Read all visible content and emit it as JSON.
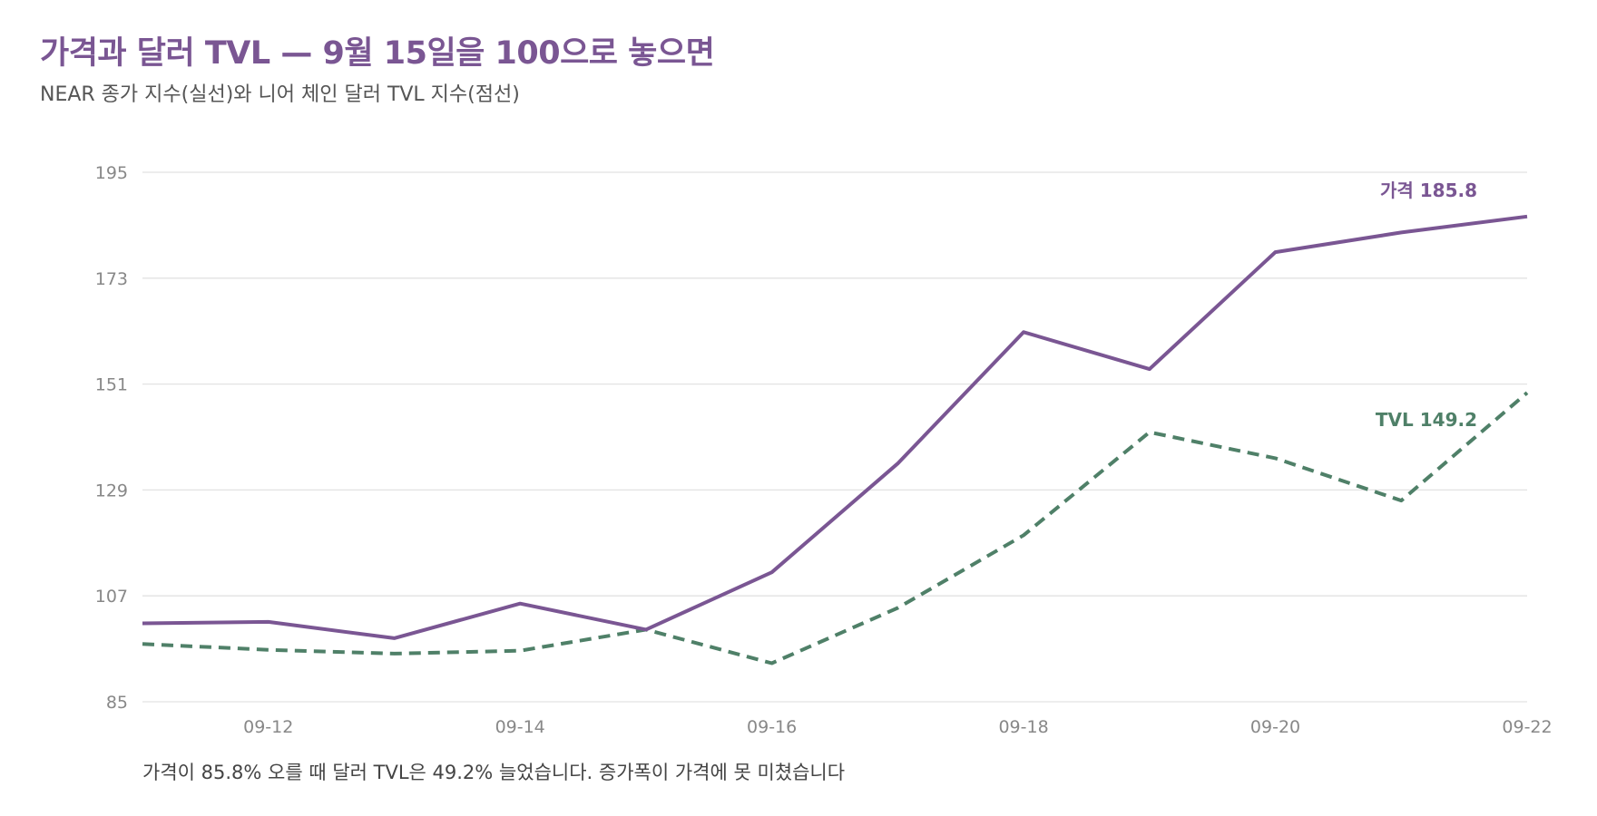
{
  "header": {
    "title": "가격과 달러 TVL — 9월 15일을 100으로 놓으면",
    "subtitle": "NEAR 종가 지수(실선)와 니어 체인 달러 TVL 지수(점선)"
  },
  "caption": "가격이 85.8% 오를 때 달러 TVL은 49.2% 늘었습니다. 증가폭이 가격에 못 미쳤습니다",
  "colors": {
    "price": "#7a5693",
    "tvl": "#4f8068",
    "grid": "#e2e2e2",
    "axis_text": "#888888"
  },
  "chart_data": {
    "type": "line",
    "x": [
      "09-11",
      "09-12",
      "09-13",
      "09-14",
      "09-15",
      "09-16",
      "09-17",
      "09-18",
      "09-19",
      "09-20",
      "09-21",
      "09-22"
    ],
    "x_tick_labels": [
      "09-12",
      "09-14",
      "09-16",
      "09-18",
      "09-20",
      "09-22"
    ],
    "y_ticks": [
      85,
      107,
      129,
      151,
      173,
      195
    ],
    "ylim": [
      85,
      195
    ],
    "grid": true,
    "series": [
      {
        "key": "price",
        "style": "solid",
        "values": [
          101.3,
          101.6,
          98.2,
          105.4,
          100.0,
          111.9,
          134.5,
          161.8,
          154.1,
          178.4,
          182.5,
          185.8
        ],
        "end_label": "가격 185.8"
      },
      {
        "key": "tvl",
        "style": "dashed",
        "values": [
          97.0,
          95.8,
          95.0,
          95.6,
          100.0,
          93.0,
          104.5,
          119.6,
          141.0,
          135.6,
          126.8,
          149.2
        ],
        "end_label": "TVL 149.2"
      }
    ]
  }
}
